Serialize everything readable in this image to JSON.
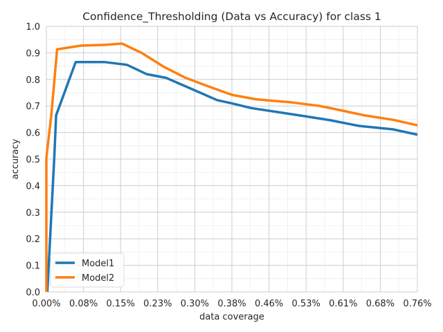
{
  "chart_data": {
    "type": "line",
    "title": "Confidence_Thresholding (Data vs Accuracy) for class 1",
    "xlabel": "data coverage",
    "ylabel": "accuracy",
    "xlim": [
      0,
      0.76
    ],
    "ylim": [
      0,
      1.0
    ],
    "x_ticks": [
      "0.00%",
      "0.08%",
      "0.15%",
      "0.23%",
      "0.30%",
      "0.38%",
      "0.46%",
      "0.53%",
      "0.61%",
      "0.68%",
      "0.76%"
    ],
    "y_ticks": [
      "0.0",
      "0.1",
      "0.2",
      "0.3",
      "0.4",
      "0.5",
      "0.6",
      "0.7",
      "0.8",
      "0.9",
      "1.0"
    ],
    "grid": true,
    "legend_position": "lower-left",
    "series": [
      {
        "name": "Model1",
        "color": "#1f77b4",
        "points": [
          [
            0.002,
            0.0
          ],
          [
            0.016,
            0.5
          ],
          [
            0.02,
            0.665
          ],
          [
            0.06,
            0.865
          ],
          [
            0.12,
            0.865
          ],
          [
            0.165,
            0.855
          ],
          [
            0.205,
            0.82
          ],
          [
            0.245,
            0.806
          ],
          [
            0.3,
            0.762
          ],
          [
            0.35,
            0.722
          ],
          [
            0.38,
            0.71
          ],
          [
            0.42,
            0.692
          ],
          [
            0.47,
            0.678
          ],
          [
            0.52,
            0.664
          ],
          [
            0.58,
            0.647
          ],
          [
            0.64,
            0.625
          ],
          [
            0.71,
            0.612
          ],
          [
            0.76,
            0.592
          ]
        ]
      },
      {
        "name": "Model2",
        "color": "#ff7f0e",
        "points": [
          [
            0.0,
            0.0
          ],
          [
            0.0,
            0.505
          ],
          [
            0.01,
            0.665
          ],
          [
            0.022,
            0.913
          ],
          [
            0.07,
            0.927
          ],
          [
            0.12,
            0.93
          ],
          [
            0.155,
            0.935
          ],
          [
            0.195,
            0.9
          ],
          [
            0.24,
            0.848
          ],
          [
            0.285,
            0.806
          ],
          [
            0.33,
            0.775
          ],
          [
            0.38,
            0.742
          ],
          [
            0.43,
            0.725
          ],
          [
            0.46,
            0.72
          ],
          [
            0.5,
            0.714
          ],
          [
            0.56,
            0.7
          ],
          [
            0.6,
            0.685
          ],
          [
            0.65,
            0.665
          ],
          [
            0.71,
            0.648
          ],
          [
            0.76,
            0.627
          ]
        ]
      }
    ]
  }
}
